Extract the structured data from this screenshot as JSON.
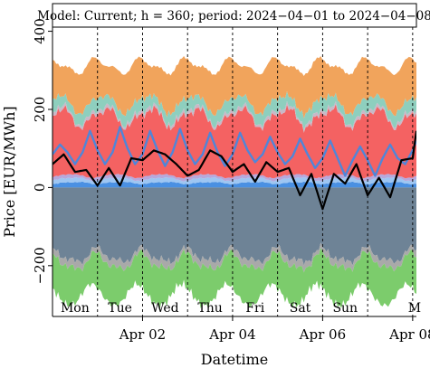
{
  "chart_data": {
    "type": "area",
    "title": "Model: Current; h = 360; period: 2024−04−01 to 2024−04−08",
    "xlabel": "Datetime",
    "ylabel": "Price [EUR/MWh]",
    "ylim": [
      -330,
      480
    ],
    "xlim_hours": [
      0,
      194
    ],
    "yticks": [
      {
        "label": "−200",
        "value": -200
      },
      {
        "label": "0",
        "value": 0
      },
      {
        "label": "200",
        "value": 200
      },
      {
        "label": "400",
        "value": 400
      }
    ],
    "xticks": [
      {
        "label": "Apr 02",
        "hour": 48
      },
      {
        "label": "Apr 04",
        "hour": 96
      },
      {
        "label": "Apr 06",
        "hour": 144
      },
      {
        "label": "Apr 08",
        "hour": 192
      }
    ],
    "day_separators_hours": [
      0,
      24,
      48,
      72,
      96,
      120,
      144,
      168,
      192
    ],
    "day_labels": [
      {
        "label": "Mon",
        "hour": 12
      },
      {
        "label": "Tue",
        "hour": 36
      },
      {
        "label": "Wed",
        "hour": 60
      },
      {
        "label": "Thu",
        "hour": 84
      },
      {
        "label": "Fri",
        "hour": 108
      },
      {
        "label": "Sat",
        "hour": 132
      },
      {
        "label": "Sun",
        "hour": 156
      },
      {
        "label": "M",
        "hour": 193
      }
    ],
    "stack_positive": [
      {
        "color": "#4a90e2",
        "base": 12,
        "amp": 5
      },
      {
        "color": "#9ec6f2",
        "base": 10,
        "amp": 4
      },
      {
        "color": "#b6a8dc",
        "base": 8,
        "amp": 3
      },
      {
        "color": "#f46262",
        "base": 150,
        "amp": 45
      },
      {
        "color": "#c9b8c7",
        "base": 8,
        "amp": 4
      },
      {
        "color": "#8ecfbe",
        "base": 28,
        "amp": 10
      },
      {
        "color": "#f1a45c",
        "base": 95,
        "amp": 30
      }
    ],
    "stack_negative": [
      {
        "color": "#6e8396",
        "base": 175,
        "amp": 35
      },
      {
        "color": "#a9a9a9",
        "base": 16,
        "amp": 8
      },
      {
        "color": "#7ccc6c",
        "base": 85,
        "amp": 35
      }
    ],
    "actual_price": {
      "color": "#000000",
      "x_hours": [
        0,
        6,
        12,
        18,
        24,
        30,
        36,
        42,
        48,
        54,
        60,
        66,
        72,
        78,
        84,
        90,
        96,
        102,
        108,
        114,
        120,
        126,
        132,
        138,
        144,
        150,
        156,
        162,
        168,
        174,
        180,
        186,
        192,
        194
      ],
      "values": [
        60,
        85,
        40,
        45,
        5,
        50,
        5,
        75,
        70,
        95,
        85,
        60,
        30,
        45,
        95,
        80,
        40,
        60,
        15,
        65,
        40,
        50,
        -20,
        35,
        -55,
        35,
        10,
        60,
        -20,
        25,
        -25,
        70,
        75,
        145
      ]
    },
    "forecast_price": {
      "color": "#4f86d9",
      "x_hours": [
        0,
        4,
        8,
        12,
        16,
        20,
        24,
        28,
        32,
        36,
        40,
        44,
        48,
        52,
        56,
        60,
        64,
        68,
        72,
        76,
        80,
        84,
        88,
        92,
        96,
        100,
        104,
        108,
        112,
        116,
        120,
        124,
        128,
        132,
        136,
        140,
        144,
        148,
        152,
        156,
        160,
        164,
        168,
        172,
        176,
        180,
        184,
        188,
        192,
        194
      ],
      "values": [
        85,
        110,
        90,
        60,
        90,
        145,
        95,
        60,
        90,
        155,
        100,
        60,
        85,
        145,
        95,
        55,
        90,
        150,
        95,
        60,
        85,
        140,
        90,
        55,
        85,
        140,
        95,
        65,
        85,
        130,
        90,
        60,
        80,
        125,
        85,
        50,
        75,
        120,
        75,
        30,
        70,
        105,
        70,
        30,
        75,
        110,
        75,
        60,
        95,
        120
      ]
    }
  }
}
